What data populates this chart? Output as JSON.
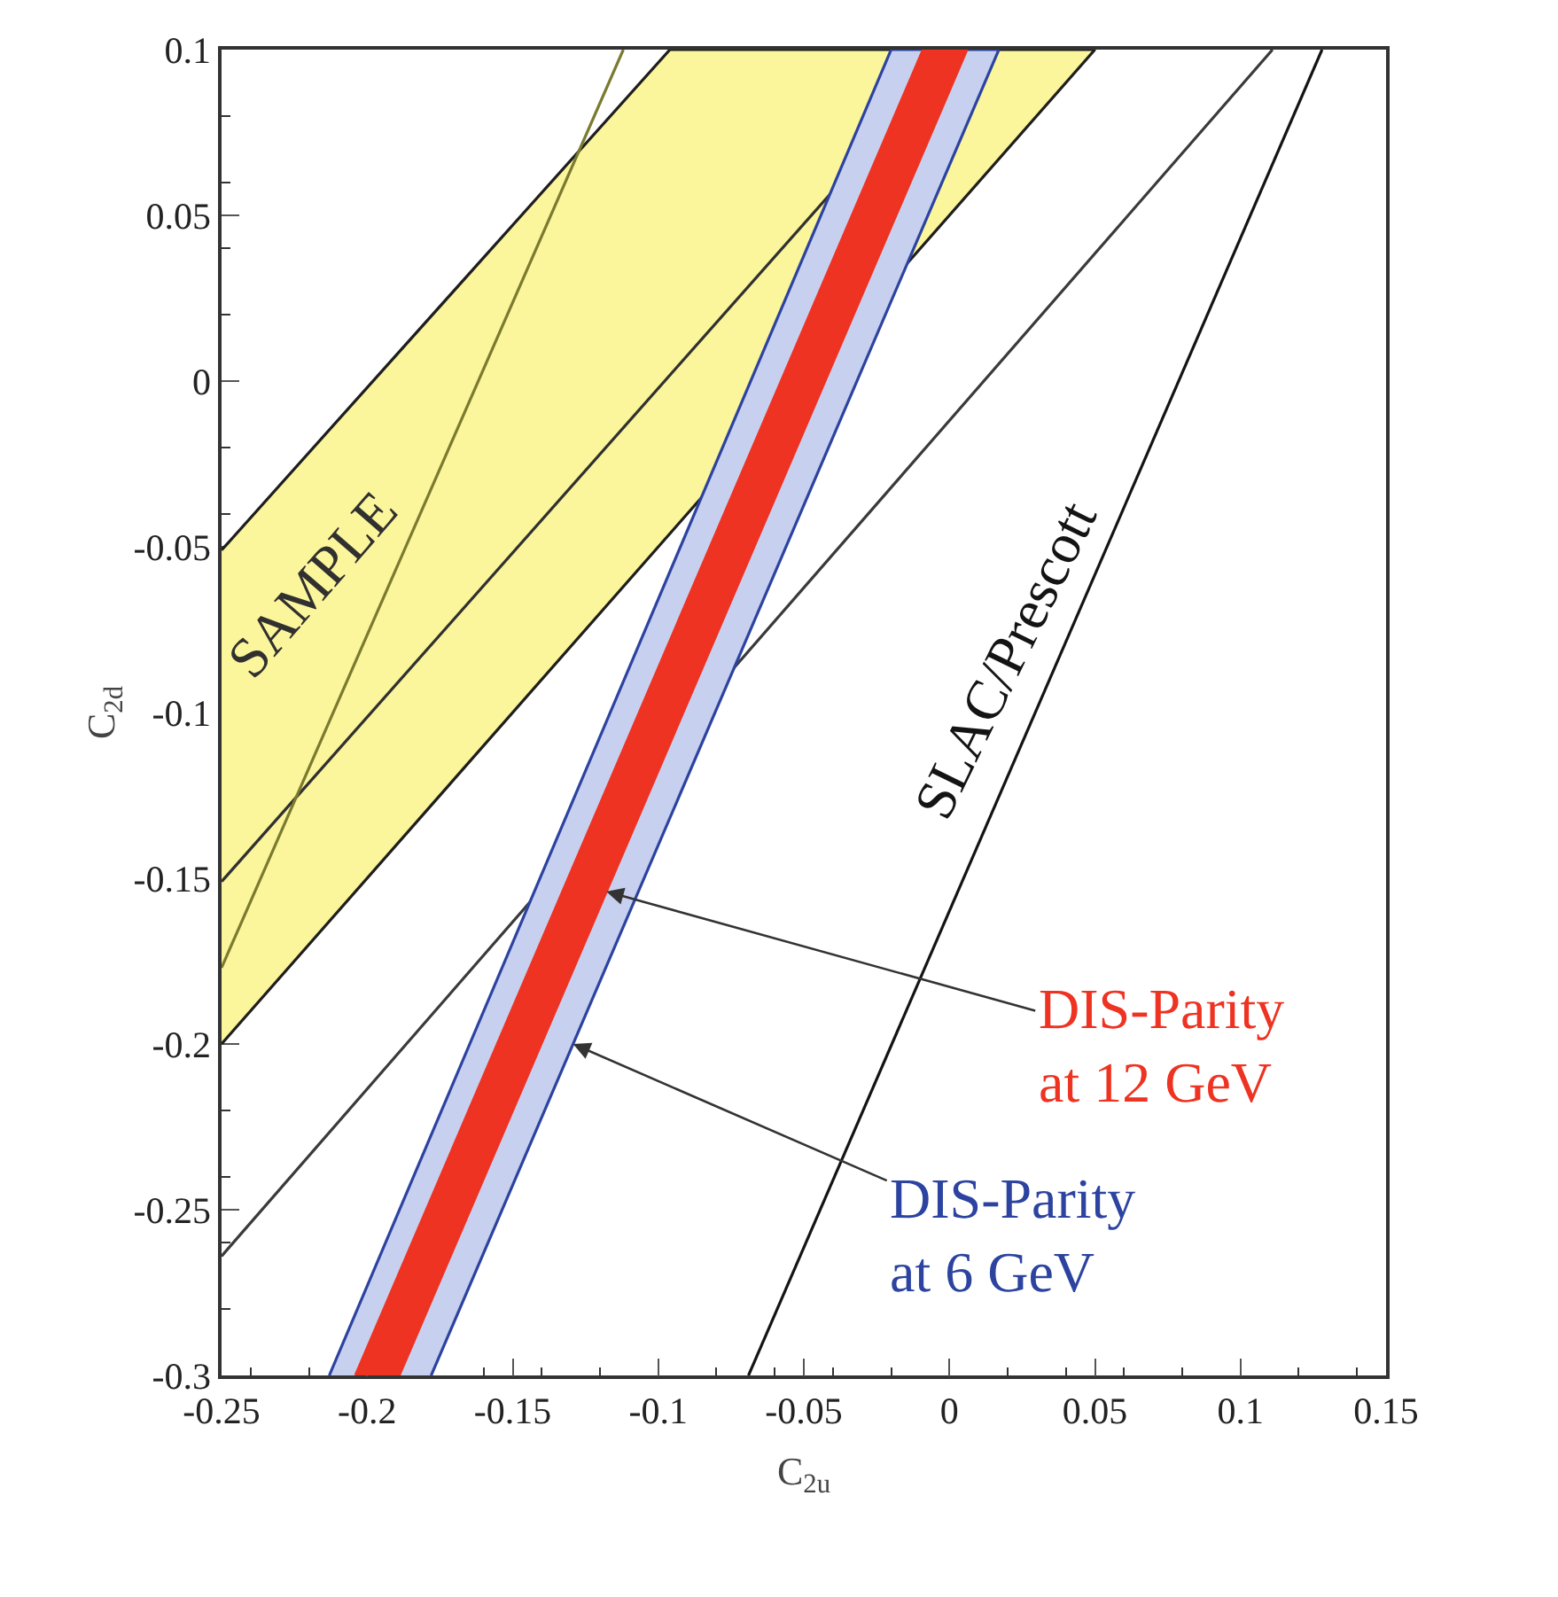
{
  "chart_data": {
    "type": "line",
    "xlabel": "C$_{2u}$",
    "ylabel": "C$_{2d}$",
    "xlim": [
      -0.25,
      0.15
    ],
    "ylim": [
      -0.3,
      0.1
    ],
    "xticks": [
      -0.25,
      -0.2,
      -0.15,
      -0.1,
      -0.05,
      0,
      0.05,
      0.1,
      0.15
    ],
    "yticks": [
      -0.3,
      -0.25,
      -0.2,
      -0.15,
      -0.1,
      -0.05,
      0,
      0.05,
      0.1
    ],
    "series": [
      {
        "type": "area",
        "color": "#fbf59b",
        "x": [
          -0.25,
          -0.096,
          0.05,
          -0.25
        ],
        "values": [
          -0.051,
          0.1,
          0.1,
          -0.2
        ]
      },
      {
        "name": "SAMPLE",
        "color": "#303030",
        "x": [
          -0.25,
          0.003
        ],
        "values": [
          -0.151,
          0.1
        ]
      },
      {
        "color": "#7a7a30",
        "x": [
          -0.25,
          -0.112
        ],
        "values": [
          -0.177,
          0.1
        ]
      },
      {
        "color": "#3a3a3a",
        "x": [
          -0.25,
          0.111
        ],
        "values": [
          -0.264,
          0.1
        ]
      },
      {
        "name": "SLAC/Prescott",
        "color": "#141414",
        "x": [
          -0.069,
          0.128
        ],
        "values": [
          -0.3,
          0.1
        ]
      },
      {
        "type": "area",
        "name": "DIS-Parity at 6 GeV",
        "color": "#c8d0f0",
        "x": [
          -0.213,
          -0.02,
          0.017,
          -0.178
        ],
        "values": [
          -0.3,
          0.1,
          0.1,
          -0.3
        ]
      },
      {
        "type": "area",
        "name": "DIS-Parity at 12 GeV",
        "color": "#ee3322",
        "x": [
          -0.204,
          -0.009,
          0.006,
          -0.189
        ],
        "values": [
          -0.3,
          0.1,
          0.1,
          -0.3
        ]
      }
    ]
  }
}
